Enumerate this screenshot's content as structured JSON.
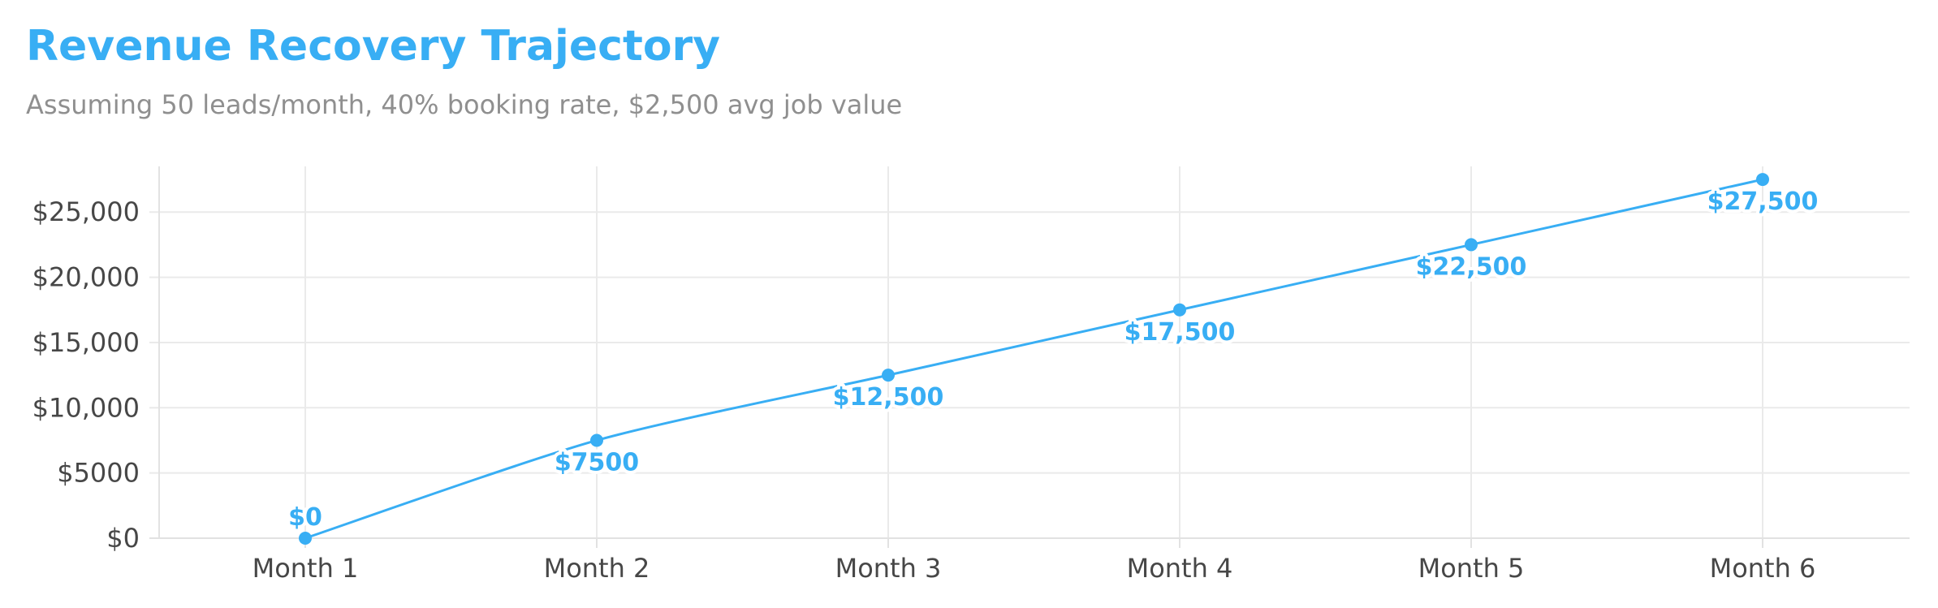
{
  "chart_data": {
    "type": "line",
    "title": "Revenue Recovery Trajectory",
    "subtitle": "Assuming 50 leads/month, 40% booking rate, $2,500 avg job value",
    "xlabel": "",
    "ylabel": "",
    "categories": [
      "Month 1",
      "Month 2",
      "Month 3",
      "Month 4",
      "Month 5",
      "Month 6"
    ],
    "series": [
      {
        "values": [
          0,
          7500,
          12500,
          17500,
          22500,
          27500
        ],
        "labels": [
          "$0",
          "$7500",
          "$12,500",
          "$17,500",
          "$22,500",
          "$27,500"
        ]
      }
    ],
    "y_ticks": [
      0,
      5000,
      10000,
      15000,
      20000,
      25000
    ],
    "y_tick_labels": [
      "$0",
      "$5000",
      "$10,000",
      "$15,000",
      "$20,000",
      "$25,000"
    ],
    "ylim": [
      0,
      28500
    ],
    "grid": true,
    "legend": "none",
    "line_color": "#38aef4",
    "grid_color": "#eaeaea"
  }
}
